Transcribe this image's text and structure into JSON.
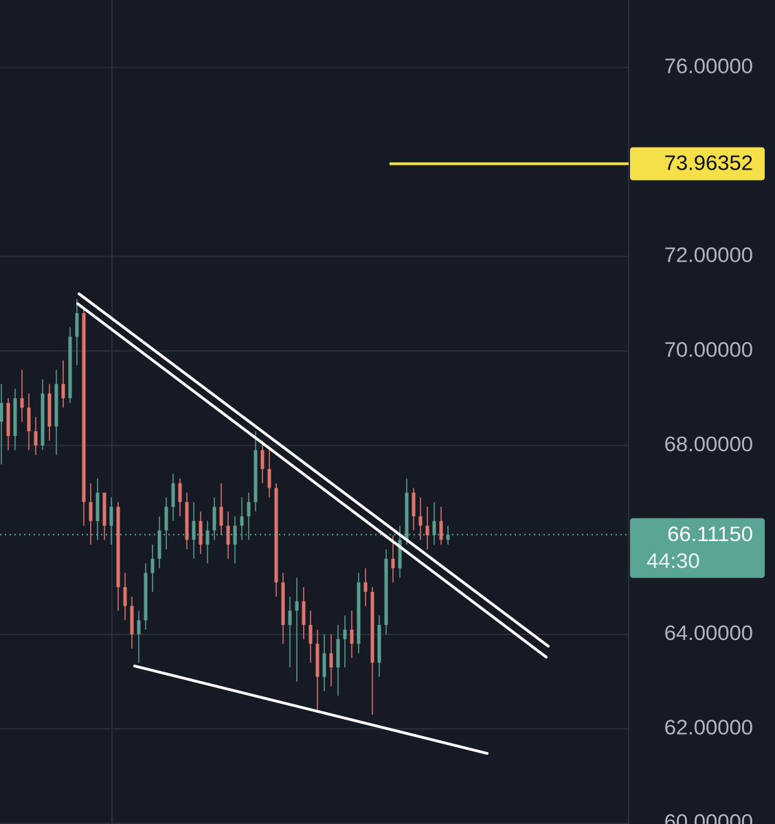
{
  "chart_data": {
    "type": "candlestick",
    "ylim": [
      60,
      77.43
    ],
    "xlim": [
      -0.2,
      91.3
    ],
    "yticks": [
      {
        "value": 60,
        "label": "60.00000"
      },
      {
        "value": 62,
        "label": "62.00000"
      },
      {
        "value": 64,
        "label": "64.00000"
      },
      {
        "value": 68,
        "label": "68.00000"
      },
      {
        "value": 70,
        "label": "70.00000"
      },
      {
        "value": 72,
        "label": "72.00000"
      },
      {
        "value": 76,
        "label": "76.00000"
      }
    ],
    "grid": true,
    "up_color": "#5b9e8f",
    "down_color": "#e0756b",
    "candles": {
      "open": [
        68.5,
        68.9,
        68.2,
        69.0,
        68.8,
        68.3,
        68.0,
        69.1,
        68.4,
        69.3,
        69.0,
        70.3,
        70.8,
        66.8,
        66.4,
        67.0,
        66.3,
        66.7,
        65.0,
        64.6,
        64.0,
        64.3,
        65.3,
        65.6,
        66.2,
        66.7,
        67.2,
        66.8,
        66.0,
        66.4,
        65.9,
        66.2,
        66.7,
        66.3,
        65.9,
        66.3,
        66.5,
        66.8,
        67.9,
        67.5,
        67.1,
        65.1,
        64.2,
        64.5,
        64.7,
        64.2,
        63.8,
        63.1,
        63.6,
        63.3,
        63.9,
        64.1,
        63.8,
        65.1,
        64.9,
        63.4,
        64.2,
        65.6,
        65.4,
        66.0,
        67.0,
        66.5,
        66.3,
        66.1,
        66.4,
        66.0
      ],
      "high": [
        69.3,
        69.0,
        69.2,
        69.6,
        69.1,
        68.6,
        69.4,
        69.3,
        69.6,
        69.8,
        70.5,
        71.1,
        70.9,
        67.2,
        67.3,
        67.0,
        66.9,
        66.8,
        65.3,
        64.8,
        64.5,
        65.5,
        65.9,
        66.5,
        66.9,
        67.4,
        67.3,
        67.0,
        66.8,
        66.6,
        66.4,
        66.9,
        67.2,
        66.6,
        66.5,
        66.9,
        67.0,
        68.3,
        68.1,
        67.9,
        67.2,
        65.3,
        64.8,
        65.2,
        65.0,
        64.5,
        64.1,
        64.0,
        64.0,
        64.2,
        64.4,
        64.5,
        65.3,
        65.4,
        65.0,
        64.4,
        65.8,
        66.1,
        66.3,
        67.3,
        67.1,
        66.9,
        66.7,
        66.8,
        66.7,
        66.3
      ],
      "low": [
        67.6,
        67.9,
        67.9,
        68.5,
        67.9,
        67.8,
        67.9,
        68.1,
        67.8,
        68.8,
        68.9,
        69.7,
        66.3,
        65.9,
        66.0,
        66.0,
        65.9,
        64.5,
        64.3,
        63.7,
        63.4,
        64.1,
        64.9,
        65.4,
        65.8,
        66.4,
        66.5,
        65.8,
        65.6,
        65.7,
        65.5,
        66.0,
        66.1,
        65.6,
        65.5,
        66.0,
        66.0,
        66.6,
        67.2,
        66.9,
        64.8,
        63.8,
        63.3,
        63.0,
        63.9,
        63.4,
        62.4,
        62.8,
        62.9,
        62.7,
        63.3,
        63.5,
        63.6,
        64.6,
        62.3,
        63.1,
        64.0,
        65.1,
        65.2,
        65.9,
        66.2,
        66.0,
        65.8,
        65.9,
        65.9,
        65.9
      ],
      "close": [
        68.9,
        68.2,
        69.0,
        68.8,
        68.3,
        68.0,
        69.1,
        68.4,
        69.3,
        69.0,
        70.3,
        70.8,
        66.8,
        66.4,
        67.0,
        66.3,
        66.7,
        65.0,
        64.6,
        64.0,
        64.3,
        65.3,
        65.6,
        66.2,
        66.7,
        67.2,
        66.8,
        66.0,
        66.4,
        65.9,
        66.2,
        66.7,
        66.3,
        65.9,
        66.3,
        66.5,
        66.8,
        67.9,
        67.5,
        67.1,
        65.1,
        64.2,
        64.5,
        64.7,
        64.2,
        63.8,
        63.1,
        63.6,
        63.3,
        63.9,
        64.1,
        63.8,
        65.1,
        64.9,
        63.4,
        64.2,
        65.6,
        65.4,
        66.0,
        67.0,
        66.5,
        66.3,
        66.1,
        66.4,
        66.0,
        66.1115
      ]
    },
    "price_line": {
      "value": 73.96352,
      "color": "#f5e04a",
      "start": 56.5
    },
    "last_price": {
      "value": 66.1115,
      "value_label": "66.11150",
      "countdown": "44:30",
      "color": "#5aa596"
    },
    "trend_lines": [
      {
        "x": [
          11.3,
          79.6
        ],
        "y": [
          71.21,
          63.75
        ]
      },
      {
        "x": [
          11.1,
          79.3
        ],
        "y": [
          71.0,
          63.52
        ]
      },
      {
        "x": [
          19.4,
          70.7
        ],
        "y": [
          63.33,
          61.48
        ]
      }
    ]
  }
}
